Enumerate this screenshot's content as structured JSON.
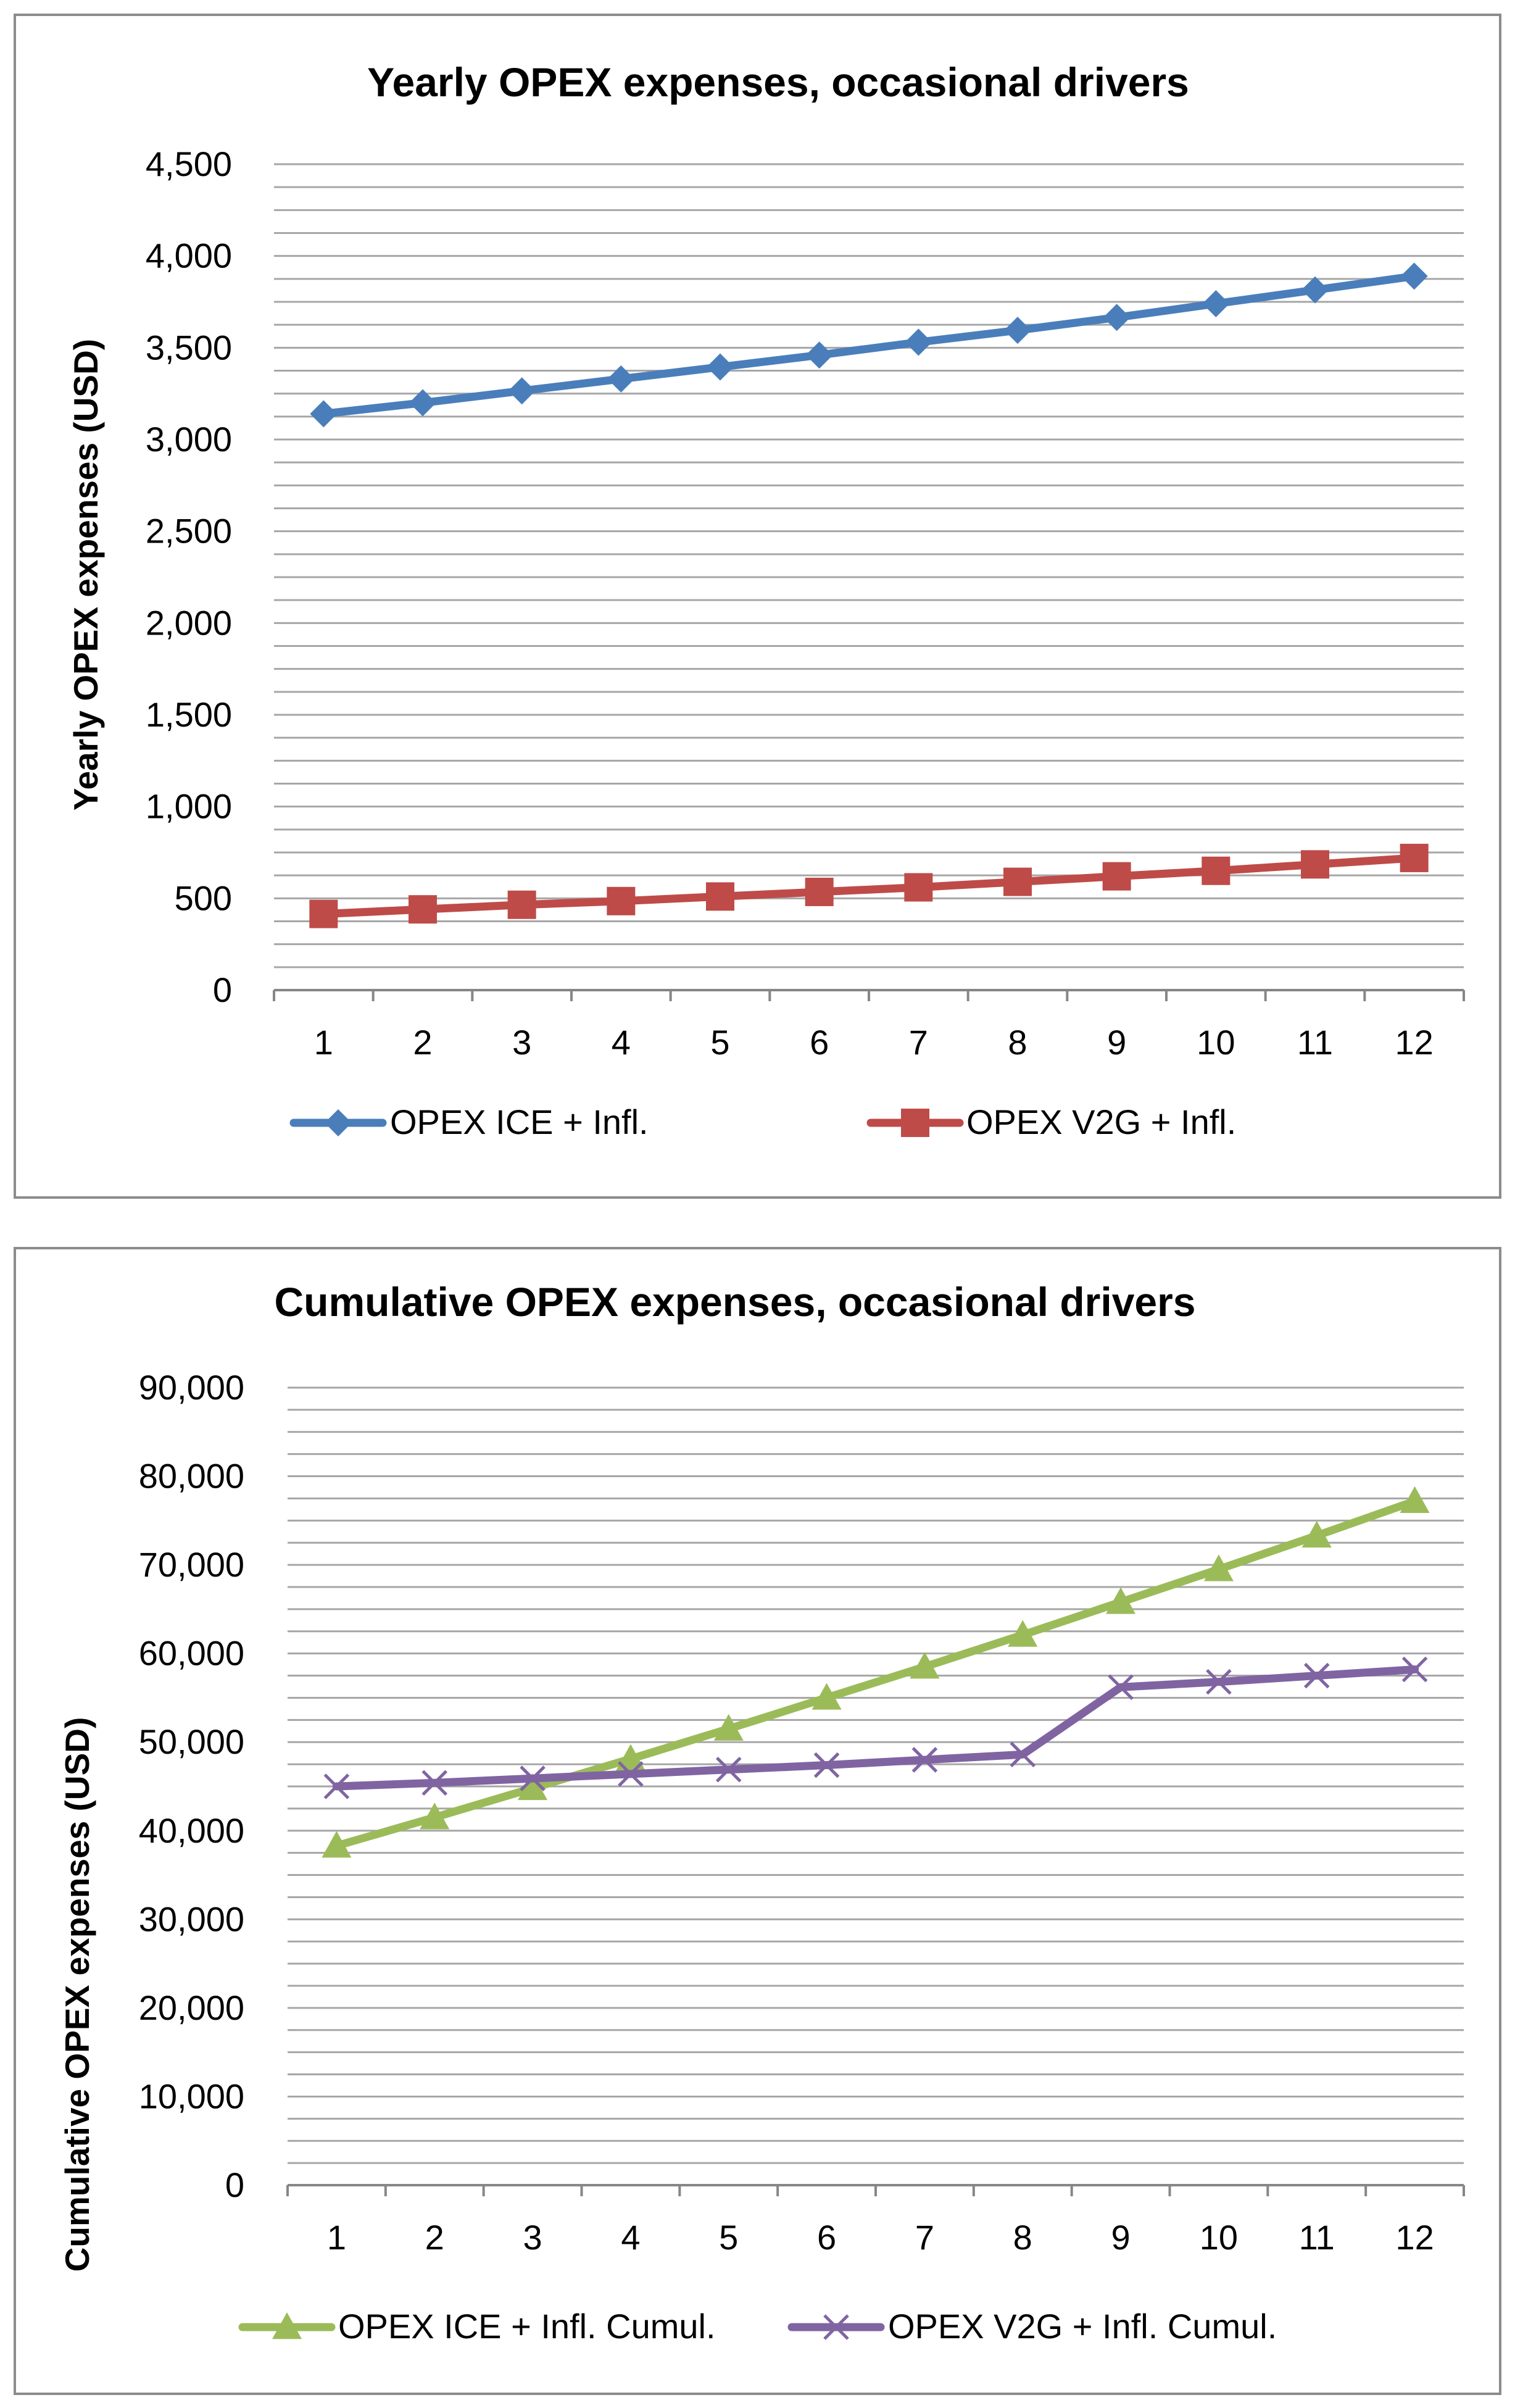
{
  "colors": {
    "grid": "#a6a6a6",
    "axis": "#868686",
    "ice_line": "#4a7ebb",
    "ice_marker": "#4f81bd",
    "v2g_line": "#be4b48",
    "v2g_marker": "#c0504d",
    "ice_cumul": "#9bbb59",
    "v2g_cumul": "#8064a2"
  },
  "chart_data": [
    {
      "type": "line",
      "title": "Yearly OPEX expenses, occasional  drivers",
      "xlabel": "",
      "ylabel": "Yearly OPEX expenses (USD)",
      "categories": [
        "1",
        "2",
        "3",
        "4",
        "5",
        "6",
        "7",
        "8",
        "9",
        "10",
        "11",
        "12"
      ],
      "ylim": [
        0,
        4500
      ],
      "yticks": [
        0,
        500,
        1000,
        1500,
        2000,
        2500,
        3000,
        3500,
        4000,
        4500
      ],
      "ytick_labels": [
        "0",
        "500",
        "1,000",
        "1,500",
        "2,000",
        "2,500",
        "3,000",
        "3,500",
        "4,000",
        "4,500"
      ],
      "minor_step": 125,
      "grid": true,
      "legend": "bottom",
      "series": [
        {
          "name": "OPEX ICE + Infl.",
          "marker": "diamond",
          "color_key": "ice_line",
          "values": [
            3140,
            3200,
            3265,
            3330,
            3395,
            3460,
            3530,
            3595,
            3665,
            3740,
            3815,
            3890
          ]
        },
        {
          "name": "OPEX V2G + Infl.",
          "marker": "square",
          "color_key": "v2g_line",
          "values": [
            415,
            440,
            465,
            485,
            510,
            535,
            560,
            590,
            620,
            650,
            685,
            720
          ]
        }
      ]
    },
    {
      "type": "line",
      "title": "Cumulative OPEX expenses, occasional  drivers",
      "xlabel": "",
      "ylabel": "Cumulative OPEX expenses (USD)",
      "categories": [
        "1",
        "2",
        "3",
        "4",
        "5",
        "6",
        "7",
        "8",
        "9",
        "10",
        "11",
        "12"
      ],
      "ylim": [
        0,
        90000
      ],
      "yticks": [
        0,
        10000,
        20000,
        30000,
        40000,
        50000,
        60000,
        70000,
        80000,
        90000
      ],
      "ytick_labels": [
        "0",
        "10,000",
        "20,000",
        "30,000",
        "40,000",
        "50,000",
        "60,000",
        "70,000",
        "80,000",
        "90,000"
      ],
      "minor_step": 2500,
      "grid": true,
      "legend": "bottom",
      "series": [
        {
          "name": "OPEX ICE + Infl. Cumul.",
          "marker": "triangle",
          "color_key": "ice_cumul",
          "values": [
            38300,
            41500,
            44800,
            48100,
            51500,
            55000,
            58500,
            62100,
            65800,
            69500,
            73300,
            77200
          ]
        },
        {
          "name": "OPEX V2G + Infl. Cumul.",
          "marker": "x",
          "color_key": "v2g_cumul",
          "values": [
            45000,
            45400,
            45900,
            46400,
            46900,
            47400,
            48000,
            48600,
            56200,
            56800,
            57500,
            58200
          ]
        }
      ]
    }
  ]
}
